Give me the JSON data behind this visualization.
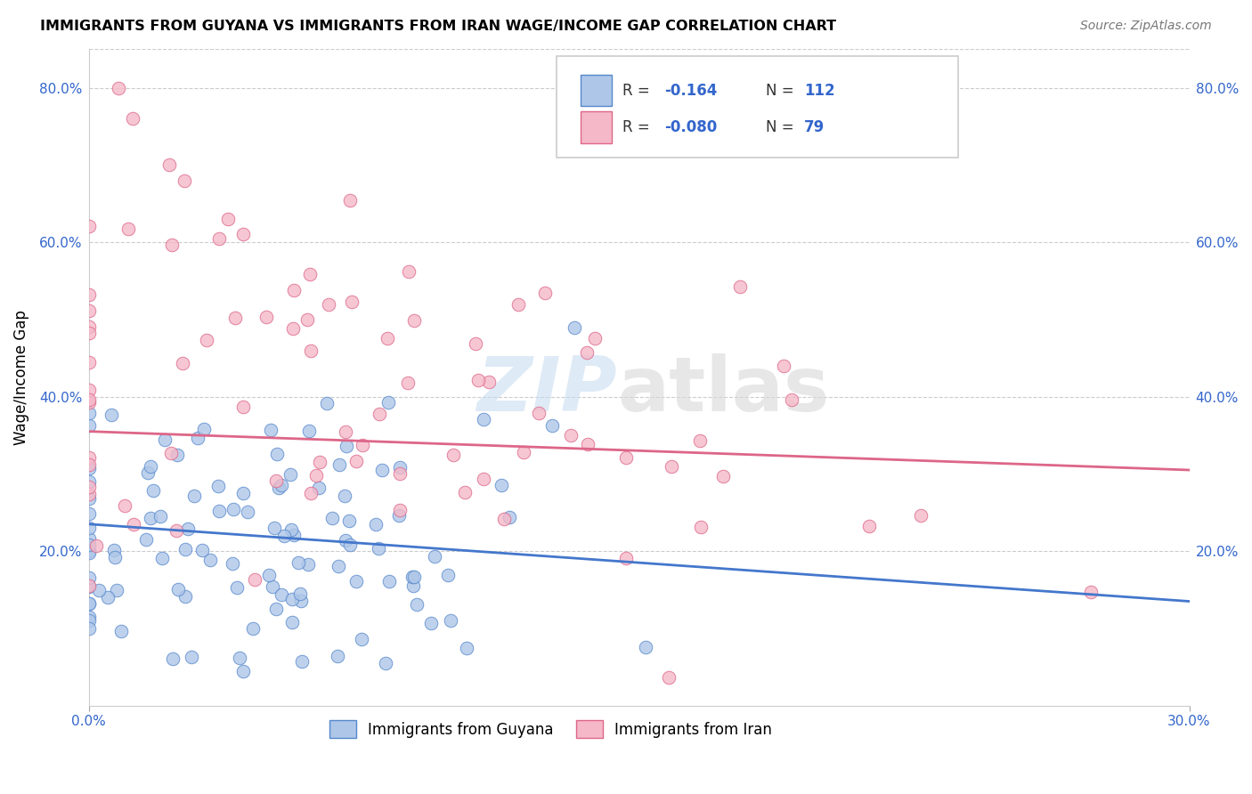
{
  "title": "IMMIGRANTS FROM GUYANA VS IMMIGRANTS FROM IRAN WAGE/INCOME GAP CORRELATION CHART",
  "source": "Source: ZipAtlas.com",
  "ylabel": "Wage/Income Gap",
  "xlim": [
    0.0,
    0.3
  ],
  "ylim": [
    0.0,
    0.85
  ],
  "y_ticks": [
    0.2,
    0.4,
    0.6,
    0.8
  ],
  "y_tick_labels": [
    "20.0%",
    "40.0%",
    "60.0%",
    "80.0%"
  ],
  "guyana_color": "#aec6e8",
  "iran_color": "#f4b8c8",
  "guyana_edge": "#5588cc",
  "iran_edge": "#dd6688",
  "guyana_line_color": "#4477cc",
  "iran_line_color": "#dd6688",
  "guyana_R": -0.164,
  "guyana_N": 112,
  "iran_R": -0.08,
  "iran_N": 79,
  "legend_R_color": "#3366cc",
  "tick_label_color": "#3366cc",
  "background_color": "#ffffff",
  "grid_color": "#cccccc",
  "watermark_zip_color": "#c8ddf0",
  "watermark_atlas_color": "#d8d8d8",
  "guyana_line_y0": 0.235,
  "guyana_line_y1": 0.135,
  "iran_line_y0": 0.355,
  "iran_line_y1": 0.305
}
